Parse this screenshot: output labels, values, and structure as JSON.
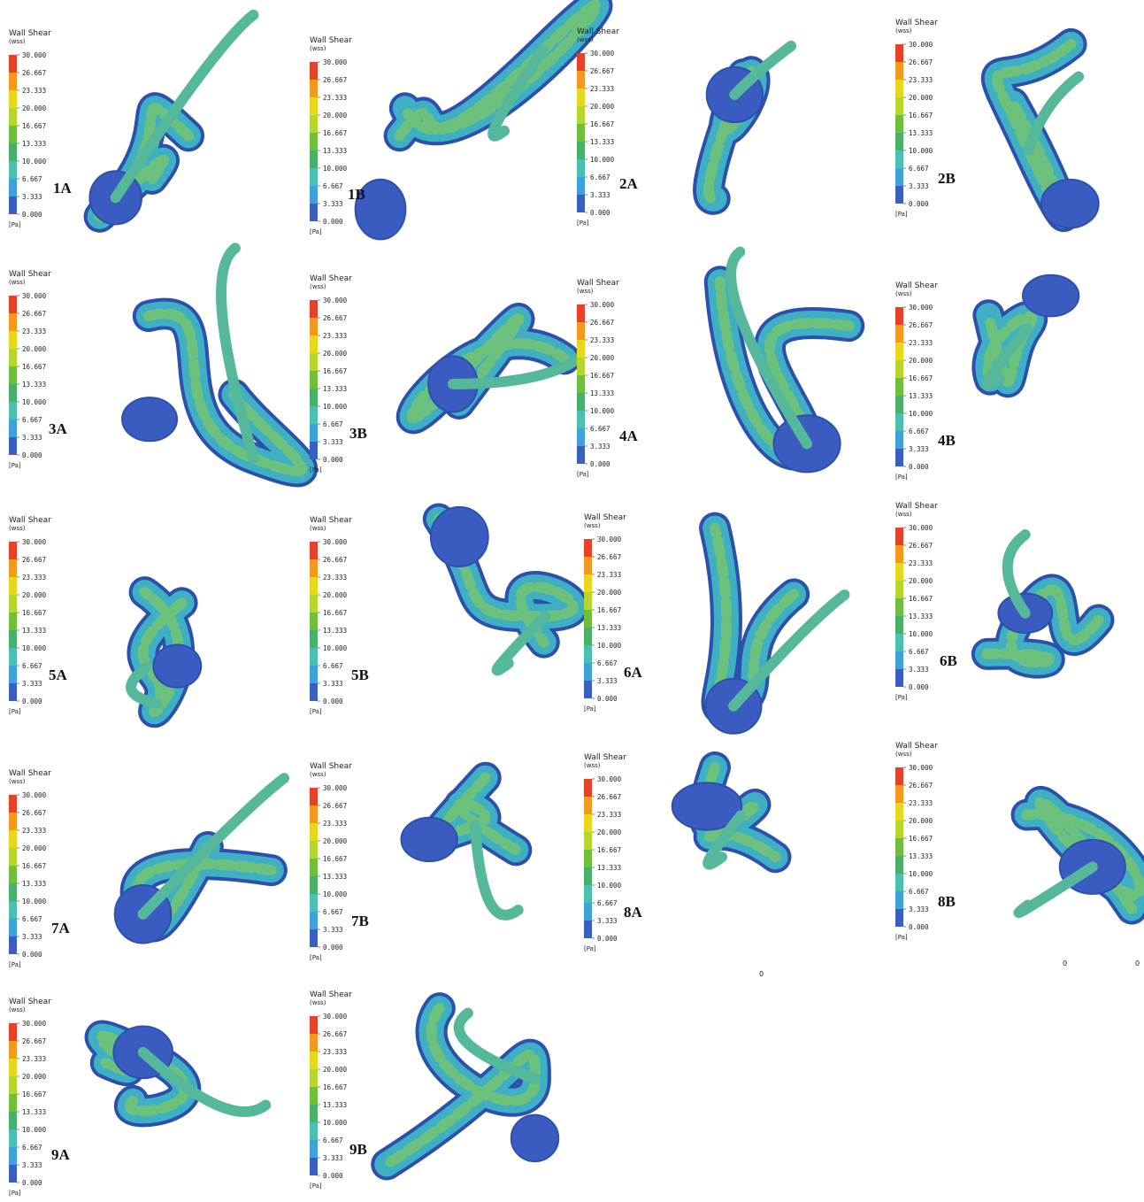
{
  "legend": {
    "title": "Wall Shear",
    "quantity": "(wss)",
    "ticks": [
      "30.000",
      "26.667",
      "23.333",
      "20.000",
      "16.667",
      "13.333",
      "10.000",
      "6.667",
      "3.333",
      "0.000"
    ],
    "unit": "[Pa]"
  },
  "panels": [
    {
      "label": "1A"
    },
    {
      "label": "1B"
    },
    {
      "label": "2A"
    },
    {
      "label": "2B"
    },
    {
      "label": "3A"
    },
    {
      "label": "3B"
    },
    {
      "label": "4A"
    },
    {
      "label": "4B"
    },
    {
      "label": "5A"
    },
    {
      "label": "5B"
    },
    {
      "label": "6A"
    },
    {
      "label": "6B"
    },
    {
      "label": "7A"
    },
    {
      "label": "7B"
    },
    {
      "label": "8A"
    },
    {
      "label": "8B"
    },
    {
      "label": "9A"
    },
    {
      "label": "9B"
    }
  ],
  "annotations": [
    "0",
    "0",
    "0"
  ]
}
